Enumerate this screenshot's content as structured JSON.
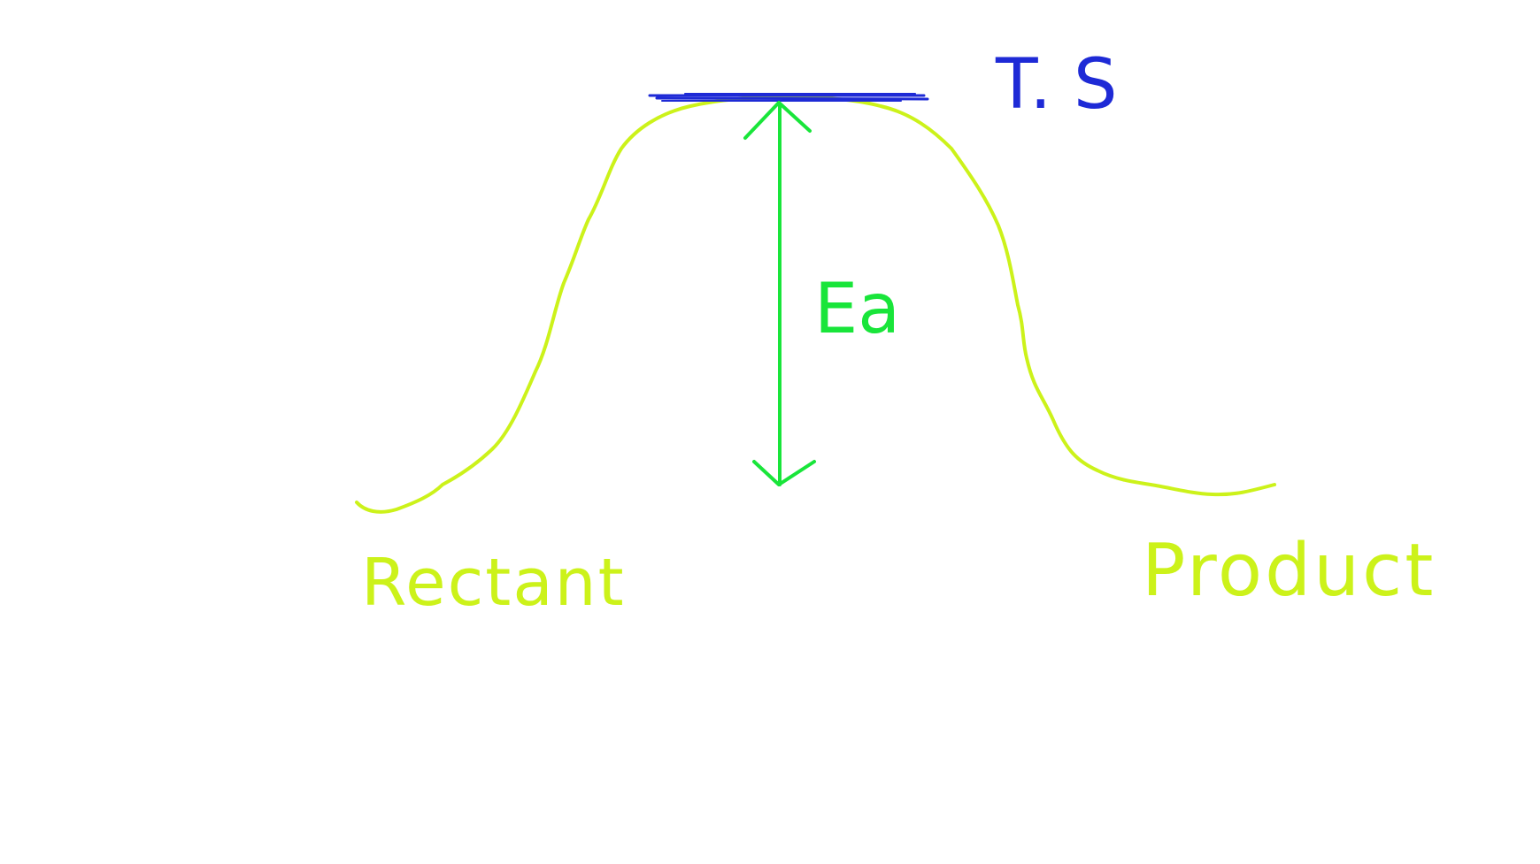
{
  "diagram": {
    "labels": {
      "transition_state": "T. S",
      "activation_energy": "Ea",
      "reactant": "Rectant",
      "product": "Product"
    },
    "colors": {
      "background": "#ffffff",
      "curve": "#ccf21a",
      "arrow": "#19e53a",
      "transition_line": "#1e2ad6",
      "transition_label": "#1e2ad6",
      "reactant_label": "#ccf21a",
      "product_label": "#ccf21a",
      "ea_label": "#19e53a"
    }
  }
}
